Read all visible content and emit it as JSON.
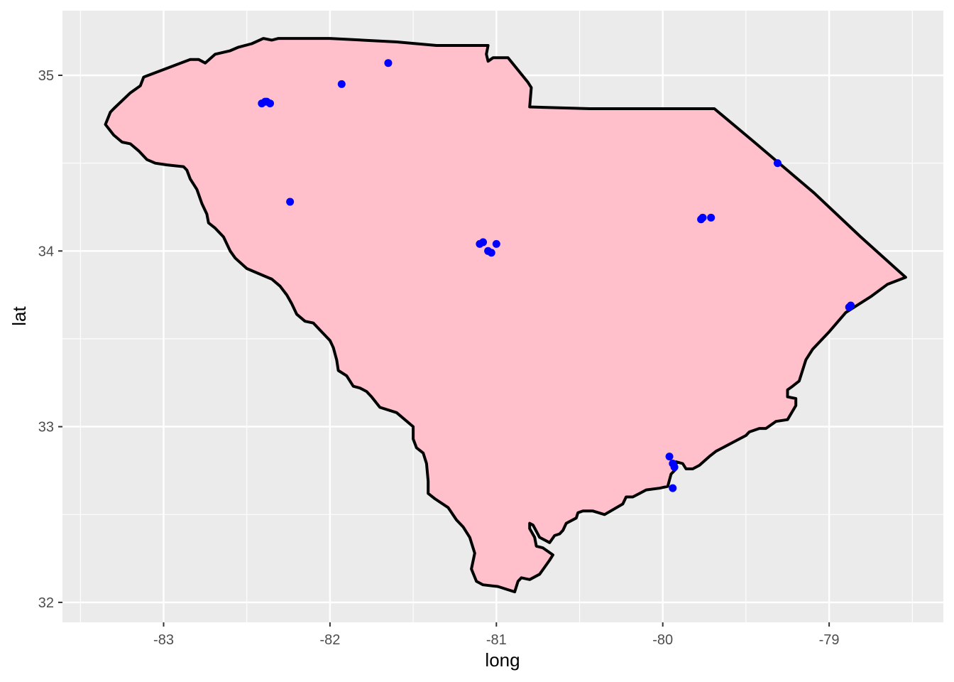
{
  "chart_data": {
    "type": "scatter",
    "xlabel": "long",
    "ylabel": "lat",
    "xlim": [
      -83.6,
      -78.5
    ],
    "ylim": [
      31.9,
      35.37
    ],
    "x_ticks": [
      -83,
      -82,
      -81,
      -80,
      -79
    ],
    "x_tick_labels": [
      "-83",
      "-82",
      "-81",
      "-80",
      "-79"
    ],
    "y_ticks": [
      32,
      33,
      34,
      35
    ],
    "y_tick_labels": [
      "32",
      "33",
      "34",
      "35"
    ],
    "grid": true,
    "panel_background": "#ebebeb",
    "region_fill": "#ffc0cb",
    "region_stroke": "#000000",
    "point_color": "#0000ff",
    "region": {
      "name": "South Carolina",
      "outline": [
        [
          -83.35,
          34.72
        ],
        [
          -83.32,
          34.79
        ],
        [
          -83.3,
          34.81
        ],
        [
          -83.2,
          34.9
        ],
        [
          -83.14,
          34.94
        ],
        [
          -83.12,
          34.99
        ],
        [
          -82.98,
          35.04
        ],
        [
          -82.84,
          35.09
        ],
        [
          -82.79,
          35.09
        ],
        [
          -82.75,
          35.07
        ],
        [
          -82.69,
          35.12
        ],
        [
          -82.6,
          35.14
        ],
        [
          -82.55,
          35.16
        ],
        [
          -82.47,
          35.18
        ],
        [
          -82.4,
          35.21
        ],
        [
          -82.35,
          35.2
        ],
        [
          -82.31,
          35.21
        ],
        [
          -82.0,
          35.21
        ],
        [
          -81.6,
          35.19
        ],
        [
          -81.36,
          35.17
        ],
        [
          -81.05,
          35.17
        ],
        [
          -81.06,
          35.12
        ],
        [
          -81.05,
          35.08
        ],
        [
          -81.02,
          35.1
        ],
        [
          -80.93,
          35.1
        ],
        [
          -80.81,
          34.96
        ],
        [
          -80.79,
          34.93
        ],
        [
          -80.8,
          34.82
        ],
        [
          -80.44,
          34.81
        ],
        [
          -80.0,
          34.81
        ],
        [
          -79.69,
          34.81
        ],
        [
          -79.45,
          34.62
        ],
        [
          -79.09,
          34.33
        ],
        [
          -78.81,
          34.08
        ],
        [
          -78.54,
          33.85
        ],
        [
          -78.65,
          33.81
        ],
        [
          -78.75,
          33.74
        ],
        [
          -78.9,
          33.65
        ],
        [
          -79.0,
          33.54
        ],
        [
          -79.1,
          33.44
        ],
        [
          -79.14,
          33.38
        ],
        [
          -79.18,
          33.26
        ],
        [
          -79.22,
          33.23
        ],
        [
          -79.25,
          33.21
        ],
        [
          -79.25,
          33.17
        ],
        [
          -79.2,
          33.16
        ],
        [
          -79.2,
          33.12
        ],
        [
          -79.25,
          33.04
        ],
        [
          -79.32,
          33.03
        ],
        [
          -79.38,
          32.99
        ],
        [
          -79.42,
          32.99
        ],
        [
          -79.48,
          32.97
        ],
        [
          -79.5,
          32.95
        ],
        [
          -79.58,
          32.91
        ],
        [
          -79.62,
          32.89
        ],
        [
          -79.68,
          32.86
        ],
        [
          -79.72,
          32.83
        ],
        [
          -79.78,
          32.78
        ],
        [
          -79.82,
          32.76
        ],
        [
          -79.86,
          32.76
        ],
        [
          -79.88,
          32.79
        ],
        [
          -79.92,
          32.8
        ],
        [
          -79.92,
          32.76
        ],
        [
          -79.95,
          32.73
        ],
        [
          -79.97,
          32.66
        ],
        [
          -80.02,
          32.65
        ],
        [
          -80.1,
          32.64
        ],
        [
          -80.14,
          32.62
        ],
        [
          -80.18,
          32.6
        ],
        [
          -80.22,
          32.6
        ],
        [
          -80.24,
          32.56
        ],
        [
          -80.35,
          32.5
        ],
        [
          -80.42,
          32.52
        ],
        [
          -80.48,
          32.52
        ],
        [
          -80.51,
          32.51
        ],
        [
          -80.52,
          32.48
        ],
        [
          -80.58,
          32.45
        ],
        [
          -80.6,
          32.41
        ],
        [
          -80.62,
          32.39
        ],
        [
          -80.65,
          32.38
        ],
        [
          -80.68,
          32.34
        ],
        [
          -80.74,
          32.37
        ],
        [
          -80.78,
          32.44
        ],
        [
          -80.8,
          32.45
        ],
        [
          -80.8,
          32.42
        ],
        [
          -80.77,
          32.37
        ],
        [
          -80.76,
          32.32
        ],
        [
          -80.72,
          32.31
        ],
        [
          -80.66,
          32.27
        ],
        [
          -80.68,
          32.24
        ],
        [
          -80.71,
          32.2
        ],
        [
          -80.74,
          32.16
        ],
        [
          -80.8,
          32.13
        ],
        [
          -80.85,
          32.14
        ],
        [
          -80.87,
          32.12
        ],
        [
          -80.89,
          32.06
        ],
        [
          -80.99,
          32.09
        ],
        [
          -81.08,
          32.1
        ],
        [
          -81.12,
          32.12
        ],
        [
          -81.15,
          32.19
        ],
        [
          -81.13,
          32.28
        ],
        [
          -81.16,
          32.37
        ],
        [
          -81.2,
          32.43
        ],
        [
          -81.24,
          32.47
        ],
        [
          -81.29,
          32.54
        ],
        [
          -81.37,
          32.59
        ],
        [
          -81.41,
          32.62
        ],
        [
          -81.41,
          32.69
        ],
        [
          -81.42,
          32.79
        ],
        [
          -81.44,
          32.85
        ],
        [
          -81.48,
          32.88
        ],
        [
          -81.5,
          32.93
        ],
        [
          -81.5,
          33.0
        ],
        [
          -81.6,
          33.08
        ],
        [
          -81.7,
          33.11
        ],
        [
          -81.75,
          33.17
        ],
        [
          -81.78,
          33.2
        ],
        [
          -81.82,
          33.22
        ],
        [
          -81.86,
          33.23
        ],
        [
          -81.9,
          33.29
        ],
        [
          -81.95,
          33.32
        ],
        [
          -81.96,
          33.38
        ],
        [
          -81.98,
          33.45
        ],
        [
          -82.0,
          33.49
        ],
        [
          -82.05,
          33.54
        ],
        [
          -82.1,
          33.59
        ],
        [
          -82.15,
          33.6
        ],
        [
          -82.2,
          33.64
        ],
        [
          -82.23,
          33.7
        ],
        [
          -82.26,
          33.75
        ],
        [
          -82.3,
          33.8
        ],
        [
          -82.35,
          33.84
        ],
        [
          -82.45,
          33.88
        ],
        [
          -82.5,
          33.9
        ],
        [
          -82.57,
          33.96
        ],
        [
          -82.6,
          34.0
        ],
        [
          -82.64,
          34.08
        ],
        [
          -82.69,
          34.13
        ],
        [
          -82.73,
          34.16
        ],
        [
          -82.74,
          34.21
        ],
        [
          -82.77,
          34.27
        ],
        [
          -82.8,
          34.35
        ],
        [
          -82.84,
          34.41
        ],
        [
          -82.86,
          34.46
        ],
        [
          -82.88,
          34.48
        ],
        [
          -82.98,
          34.49
        ],
        [
          -83.05,
          34.5
        ],
        [
          -83.1,
          34.52
        ],
        [
          -83.15,
          34.57
        ],
        [
          -83.2,
          34.61
        ],
        [
          -83.25,
          34.62
        ],
        [
          -83.3,
          34.66
        ],
        [
          -83.35,
          34.72
        ]
      ]
    },
    "points": [
      [
        -82.41,
        34.84
      ],
      [
        -82.39,
        34.85
      ],
      [
        -82.36,
        34.84
      ],
      [
        -82.38,
        34.85
      ],
      [
        -81.93,
        34.95
      ],
      [
        -81.65,
        35.07
      ],
      [
        -82.24,
        34.28
      ],
      [
        -81.1,
        34.04
      ],
      [
        -81.08,
        34.05
      ],
      [
        -81.05,
        34.0
      ],
      [
        -81.03,
        33.99
      ],
      [
        -81.0,
        34.04
      ],
      [
        -79.77,
        34.18
      ],
      [
        -79.76,
        34.19
      ],
      [
        -79.71,
        34.19
      ],
      [
        -79.31,
        34.5
      ],
      [
        -78.88,
        33.68
      ],
      [
        -78.87,
        33.69
      ],
      [
        -79.96,
        32.83
      ],
      [
        -79.94,
        32.79
      ],
      [
        -79.93,
        32.77
      ],
      [
        -79.94,
        32.65
      ]
    ]
  }
}
